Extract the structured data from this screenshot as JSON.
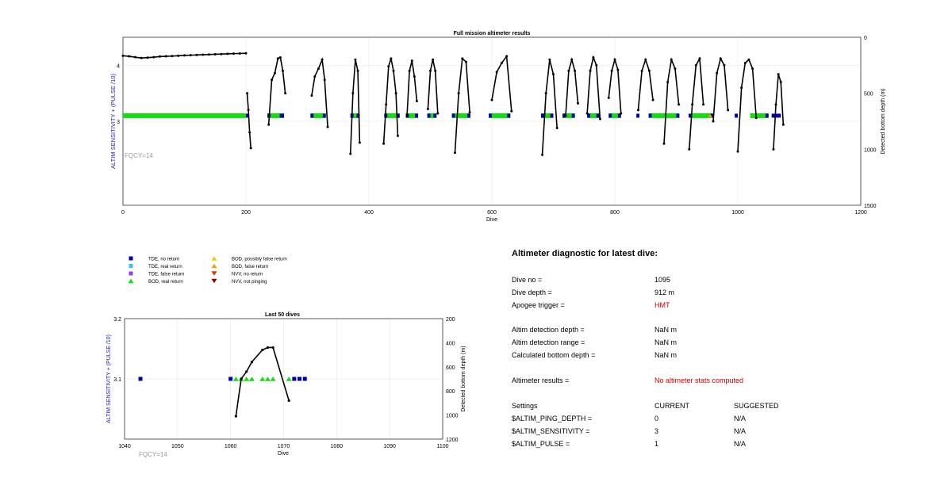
{
  "chart_data": [
    {
      "type": "scatter",
      "title": "Full mission altimeter results",
      "xlabel": "Dive",
      "ylabel_left": "ALTIM SENSITIVITY + (PULSE /10)",
      "ylabel_right": "Detected bottom depth (m)",
      "xlim": [
        0,
        1200
      ],
      "ylim_left": [
        1.5,
        4.5
      ],
      "ylim_right": [
        1500,
        0
      ],
      "x_ticks": [
        "0",
        "200",
        "400",
        "600",
        "800",
        "1000",
        "1200"
      ],
      "y_left_ticks": [
        "3",
        "4"
      ],
      "y_right_ticks": [
        "0",
        "500",
        "1000",
        "1500"
      ],
      "annotation": "FQCY=14",
      "grid": true,
      "bod_real_segments": [
        [
          0,
          200
        ],
        [
          235,
          262
        ],
        [
          305,
          330
        ],
        [
          370,
          385
        ],
        [
          425,
          450
        ],
        [
          460,
          480
        ],
        [
          495,
          510
        ],
        [
          535,
          565
        ],
        [
          595,
          630
        ],
        [
          680,
          700
        ],
        [
          715,
          735
        ],
        [
          755,
          775
        ],
        [
          790,
          810
        ],
        [
          855,
          905
        ],
        [
          925,
          960
        ],
        [
          1020,
          1050
        ]
      ],
      "tde_no_return_segments": [
        [
          200,
          205
        ],
        [
          235,
          240
        ],
        [
          255,
          262
        ],
        [
          305,
          310
        ],
        [
          325,
          330
        ],
        [
          370,
          375
        ],
        [
          380,
          385
        ],
        [
          425,
          430
        ],
        [
          445,
          450
        ],
        [
          460,
          465
        ],
        [
          475,
          480
        ],
        [
          495,
          500
        ],
        [
          505,
          510
        ],
        [
          535,
          540
        ],
        [
          560,
          565
        ],
        [
          595,
          600
        ],
        [
          625,
          630
        ],
        [
          680,
          685
        ],
        [
          695,
          700
        ],
        [
          715,
          720
        ],
        [
          730,
          735
        ],
        [
          755,
          760
        ],
        [
          770,
          775
        ],
        [
          790,
          795
        ],
        [
          805,
          810
        ],
        [
          835,
          840
        ],
        [
          855,
          860
        ],
        [
          900,
          905
        ],
        [
          920,
          925
        ],
        [
          955,
          960
        ],
        [
          995,
          1000
        ],
        [
          1045,
          1050
        ],
        [
          1055,
          1070
        ]
      ],
      "bottom_depth_trace": [
        {
          "x": [
            0,
            10,
            20,
            30,
            40,
            50,
            60,
            70,
            80,
            90,
            100,
            110,
            120,
            130,
            140,
            150,
            160,
            170,
            180,
            190,
            200
          ],
          "y": [
            165,
            170,
            178,
            185,
            182,
            178,
            172,
            170,
            168,
            165,
            162,
            160,
            158,
            156,
            154,
            152,
            150,
            148,
            146,
            145,
            143
          ]
        },
        {
          "x": [
            202,
            204,
            206,
            208
          ],
          "y": [
            500,
            650,
            850,
            990
          ]
        },
        {
          "x": [
            237,
            242,
            247,
            252,
            256,
            260,
            264
          ],
          "y": [
            780,
            380,
            320,
            190,
            180,
            300,
            500
          ]
        },
        {
          "x": [
            307,
            312,
            318,
            324,
            328,
            333
          ],
          "y": [
            520,
            350,
            280,
            200,
            380,
            800
          ]
        },
        {
          "x": [
            370,
            374,
            378,
            382,
            385
          ],
          "y": [
            1040,
            500,
            200,
            300,
            940
          ]
        },
        {
          "x": [
            424,
            428,
            432,
            436,
            440,
            444,
            447
          ],
          "y": [
            950,
            600,
            260,
            190,
            300,
            500,
            880
          ]
        },
        {
          "x": [
            462,
            466,
            470,
            474,
            478
          ],
          "y": [
            700,
            300,
            210,
            350,
            570
          ]
        },
        {
          "x": [
            496,
            500,
            504,
            508,
            512
          ],
          "y": [
            640,
            300,
            200,
            300,
            680
          ]
        },
        {
          "x": [
            540,
            546,
            552,
            558,
            564
          ],
          "y": [
            1030,
            500,
            190,
            220,
            670
          ]
        },
        {
          "x": [
            600,
            608,
            616,
            624,
            632
          ],
          "y": [
            560,
            310,
            230,
            170,
            660
          ]
        },
        {
          "x": [
            682,
            688,
            694,
            700,
            706
          ],
          "y": [
            1050,
            500,
            200,
            330,
            810
          ]
        },
        {
          "x": [
            720,
            725,
            730,
            735,
            740
          ],
          "y": [
            700,
            300,
            200,
            300,
            590
          ]
        },
        {
          "x": [
            755,
            760,
            765,
            770,
            776
          ],
          "y": [
            680,
            300,
            180,
            250,
            730
          ]
        },
        {
          "x": [
            790,
            795,
            800,
            805,
            810
          ],
          "y": [
            540,
            300,
            200,
            290,
            680
          ]
        },
        {
          "x": [
            838,
            844,
            850,
            856,
            862
          ],
          "y": [
            650,
            300,
            200,
            300,
            560
          ]
        },
        {
          "x": [
            880,
            886,
            892,
            898,
            904
          ],
          "y": [
            950,
            400,
            200,
            280,
            600
          ]
        },
        {
          "x": [
            921,
            926,
            932,
            938,
            944
          ],
          "y": [
            1000,
            600,
            250,
            190,
            600
          ]
        },
        {
          "x": [
            960,
            966,
            972,
            978,
            984
          ],
          "y": [
            750,
            320,
            190,
            250,
            650
          ]
        },
        {
          "x": [
            1000,
            1006,
            1012,
            1018,
            1024,
            1030
          ],
          "y": [
            1020,
            450,
            230,
            200,
            280,
            720
          ]
        },
        {
          "x": [
            1058,
            1062,
            1066,
            1070,
            1074
          ],
          "y": [
            1000,
            600,
            330,
            400,
            780
          ]
        }
      ]
    },
    {
      "type": "scatter",
      "title": "Last 50 dives",
      "xlabel": "Dive",
      "ylabel_left": "ALTIM SENSITIVITY + (PULSE /10)",
      "ylabel_right": "Detected bottom depth (m)",
      "xlim": [
        1040,
        1100
      ],
      "ylim_left": [
        3.0,
        3.2
      ],
      "ylim_right": [
        1200,
        200
      ],
      "x_ticks": [
        "1040",
        "1050",
        "1060",
        "1070",
        "1080",
        "1090",
        "1100"
      ],
      "y_left_ticks": [
        "3.1",
        "3.2"
      ],
      "y_right_ticks": [
        "200",
        "400",
        "600",
        "800",
        "1000",
        "1200"
      ],
      "annotation": "FQCY=14",
      "grid": true,
      "tde_no_return_x": [
        1043,
        1060,
        1072,
        1073,
        1074
      ],
      "bod_real_x": [
        1061,
        1062,
        1063,
        1064,
        1066,
        1067,
        1068,
        1071
      ],
      "sensitivity_value": 3.1,
      "bottom_depth_trace": {
        "x": [
          1061,
          1062,
          1063,
          1064,
          1066,
          1067,
          1068,
          1071
        ],
        "y": [
          1010,
          700,
          640,
          560,
          460,
          440,
          440,
          880
        ]
      }
    }
  ],
  "legend": {
    "items": [
      {
        "label": "TDE, no return",
        "color": "#0000aa",
        "shape": "square"
      },
      {
        "label": "TDE, real return",
        "color": "#33cccc",
        "shape": "square"
      },
      {
        "label": "TDE, false return",
        "color": "#8844ee",
        "shape": "square"
      },
      {
        "label": "BOD, real return",
        "color": "#11dd11",
        "shape": "triangle-up"
      },
      {
        "label": "BOD, possibly false return",
        "color": "#f2d000",
        "shape": "triangle-up"
      },
      {
        "label": "BOD, false return",
        "color": "#ff9900",
        "shape": "triangle-up"
      },
      {
        "label": "NVV, no return",
        "color": "#dd3300",
        "shape": "triangle-down"
      },
      {
        "label": "NVV, not pinging",
        "color": "#880000",
        "shape": "triangle-down"
      }
    ]
  },
  "diagnostic": {
    "title": "Altimeter diagnostic for latest dive:",
    "dive_no_label": "Dive no =",
    "dive_no": "1095",
    "dive_depth_label": "Dive depth =",
    "dive_depth": "912 m",
    "apogee_label": "Apogee trigger =",
    "apogee": "HMT",
    "detect_depth_label": "Altim detection depth =",
    "detect_depth": "NaN m",
    "detect_range_label": "Altim detection range =",
    "detect_range": "NaN m",
    "bottom_depth_label": "Calculated bottom depth =",
    "bottom_depth": "NaN m",
    "results_label": "Altimeter results =",
    "results": "No altimeter stats computed",
    "settings_label": "Settings",
    "current_label": "CURRENT",
    "suggested_label": "SUGGESTED",
    "settings": [
      {
        "name": "$ALTIM_PING_DEPTH =",
        "current": "0",
        "suggested": "N/A"
      },
      {
        "name": "$ALTIM_SENSITIVITY =",
        "current": "3",
        "suggested": "N/A"
      },
      {
        "name": "$ALTIM_PULSE =",
        "current": "1",
        "suggested": "N/A"
      }
    ]
  },
  "colors": {
    "tde_no_return": "#0000aa",
    "bod_real_return": "#11dd11",
    "bod_possibly_false": "#f2d000",
    "bod_false": "#ff9900",
    "trace": "#000000",
    "axis_label_left": "#2222bb",
    "highlight": "#cc0000"
  }
}
